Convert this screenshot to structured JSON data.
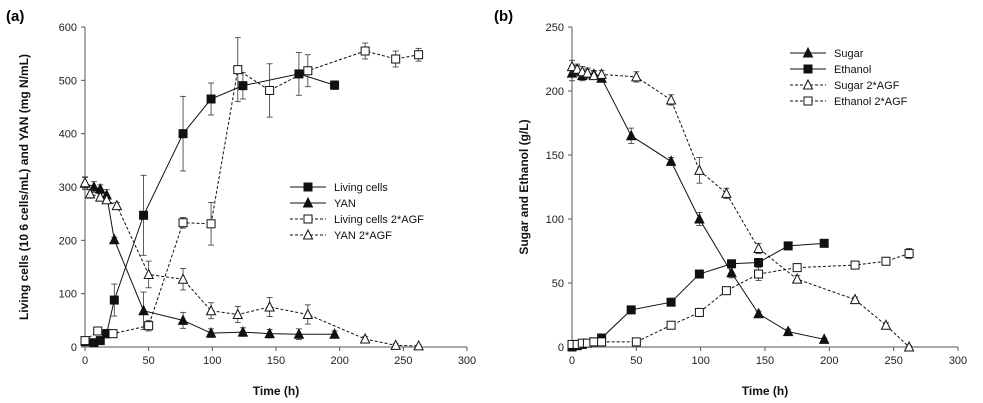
{
  "chart_data": [
    {
      "panel": "(a)",
      "type": "line",
      "xlabel": "Time (h)",
      "ylabel": "Living cells (10 6 cells/mL) and YAN (mg N/mL)",
      "xlim": [
        0,
        300
      ],
      "ylim": [
        0,
        600
      ],
      "xticks": [
        "0",
        "50",
        "100",
        "150",
        "200",
        "250",
        "300"
      ],
      "yticks": [
        "0",
        "100",
        "200",
        "300",
        "400",
        "500",
        "600"
      ],
      "legend_position": "right-middle",
      "series": [
        {
          "name": "Living cells",
          "marker": "filled-square",
          "dashed": false,
          "x": [
            0,
            7,
            12,
            17,
            23,
            46,
            77,
            99,
            124,
            168,
            196
          ],
          "y": [
            10,
            8,
            12,
            25,
            88,
            247,
            400,
            465,
            490,
            512,
            491
          ],
          "err": [
            5,
            4,
            5,
            8,
            30,
            75,
            70,
            30,
            25,
            40,
            8
          ]
        },
        {
          "name": "YAN",
          "marker": "filled-triangle",
          "dashed": false,
          "x": [
            0,
            7,
            12,
            17,
            23,
            46,
            77,
            99,
            124,
            145,
            168,
            196
          ],
          "y": [
            307,
            300,
            296,
            285,
            201,
            68,
            50,
            26,
            28,
            25,
            24,
            24
          ],
          "err": [
            12,
            10,
            8,
            10,
            5,
            35,
            15,
            8,
            8,
            8,
            10,
            6
          ]
        },
        {
          "name": "Living cells 2*AGF",
          "marker": "open-square",
          "dashed": true,
          "x": [
            0,
            10,
            22,
            50,
            77,
            99,
            120,
            145,
            175,
            220,
            244,
            262
          ],
          "y": [
            12,
            30,
            25,
            40,
            233,
            231,
            520,
            481,
            518,
            555,
            540,
            548
          ],
          "err": [
            5,
            5,
            5,
            10,
            10,
            40,
            60,
            50,
            30,
            15,
            15,
            12
          ]
        },
        {
          "name": "YAN 2*AGF",
          "marker": "open-triangle",
          "dashed": true,
          "x": [
            0,
            4,
            12,
            17,
            25,
            50,
            77,
            99,
            120,
            145,
            175,
            220,
            244,
            262
          ],
          "y": [
            308,
            287,
            281,
            276,
            265,
            136,
            127,
            68,
            61,
            75,
            61,
            15,
            3,
            2
          ],
          "err": [
            10,
            8,
            6,
            6,
            6,
            25,
            20,
            15,
            15,
            18,
            18,
            5,
            3,
            2
          ]
        }
      ]
    },
    {
      "panel": "(b)",
      "type": "line",
      "xlabel": "Time (h)",
      "ylabel": "Sugar and Ethanol (g/L)",
      "xlim": [
        0,
        300
      ],
      "ylim": [
        0,
        250
      ],
      "xticks": [
        "0",
        "50",
        "100",
        "150",
        "200",
        "250",
        "300"
      ],
      "yticks": [
        "0",
        "50",
        "100",
        "150",
        "200",
        "250"
      ],
      "legend_position": "top-right",
      "series": [
        {
          "name": "Sugar",
          "marker": "filled-triangle",
          "dashed": false,
          "x": [
            0,
            4,
            8,
            12,
            17,
            23,
            46,
            77,
            99,
            124,
            145,
            168,
            196
          ],
          "y": [
            214,
            216,
            212,
            214,
            213,
            210,
            165,
            145,
            100,
            58,
            26,
            12,
            6
          ],
          "err": [
            6,
            4,
            4,
            3,
            3,
            3,
            6,
            3,
            5,
            4,
            2,
            2,
            1
          ]
        },
        {
          "name": "Ethanol",
          "marker": "filled-square",
          "dashed": false,
          "x": [
            0,
            4,
            8,
            17,
            23,
            46,
            77,
            99,
            124,
            145,
            168,
            196
          ],
          "y": [
            0,
            1,
            2,
            4,
            7,
            29,
            35,
            57,
            65,
            66,
            79,
            81
          ],
          "err": [
            1,
            1,
            1,
            1,
            2,
            2,
            2,
            2,
            3,
            3,
            3,
            3
          ]
        },
        {
          "name": "Sugar 2*AGF",
          "marker": "open-triangle",
          "dashed": true,
          "x": [
            0,
            4,
            8,
            12,
            17,
            23,
            50,
            77,
            99,
            120,
            145,
            175,
            220,
            244,
            262
          ],
          "y": [
            219,
            217,
            215,
            214,
            212,
            213,
            211,
            193,
            138,
            120,
            77,
            53,
            37,
            17,
            0
          ],
          "err": [
            5,
            4,
            4,
            4,
            3,
            3,
            4,
            4,
            10,
            4,
            4,
            3,
            2,
            2,
            1
          ]
        },
        {
          "name": "Ethanol 2*AGF",
          "marker": "open-square",
          "dashed": true,
          "x": [
            0,
            4,
            8,
            12,
            17,
            23,
            50,
            77,
            99,
            120,
            145,
            175,
            220,
            244,
            262
          ],
          "y": [
            2,
            2,
            3,
            3,
            4,
            4,
            4,
            17,
            27,
            44,
            57,
            62,
            64,
            67,
            73
          ],
          "err": [
            1,
            1,
            1,
            1,
            1,
            1,
            1,
            2,
            3,
            3,
            5,
            3,
            2,
            2,
            4
          ]
        }
      ]
    }
  ]
}
